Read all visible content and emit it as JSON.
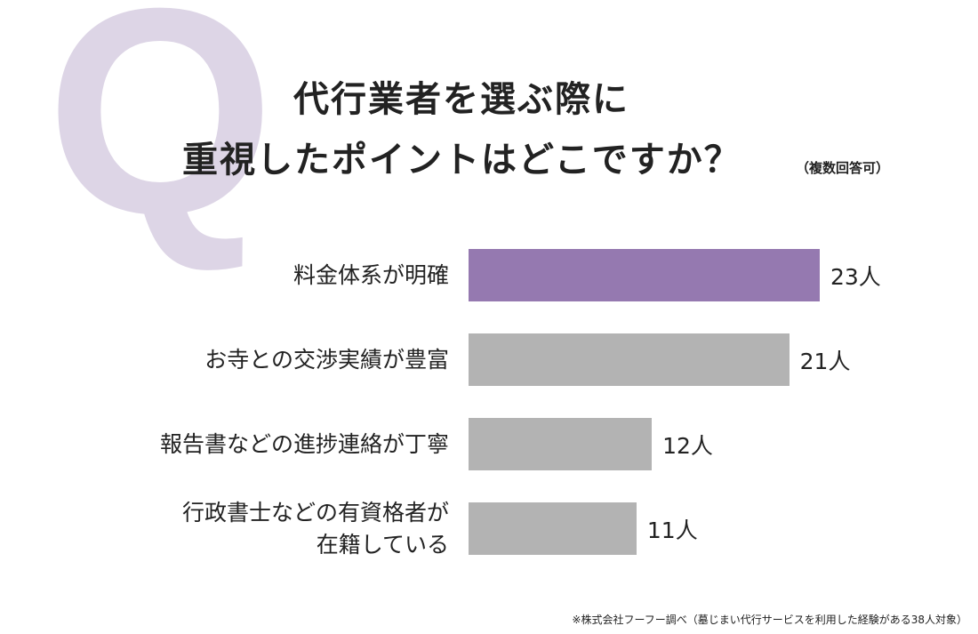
{
  "q_letter": "Q",
  "chart_data": {
    "type": "bar",
    "orientation": "horizontal",
    "title": [
      "代行業者を選ぶ際に",
      "重視したポイントはどこですか？"
    ],
    "subtitle": "（複数回答可）",
    "categories": [
      "料金体系が明確",
      "お寺との交渉実績が豊富",
      "報告書などの進捗連絡が丁寧",
      "行政書士などの有資格者が\n在籍している"
    ],
    "values": [
      23,
      21,
      12,
      11
    ],
    "value_labels": [
      "23人",
      "21人",
      "12人",
      "11人"
    ],
    "colors": [
      "#9579b0",
      "#b3b3b3",
      "#b3b3b3",
      "#b3b3b3"
    ],
    "note": "※株式会社フーフー調べ（墓じまい代行サービスを利用した経験がある38人対象）"
  }
}
